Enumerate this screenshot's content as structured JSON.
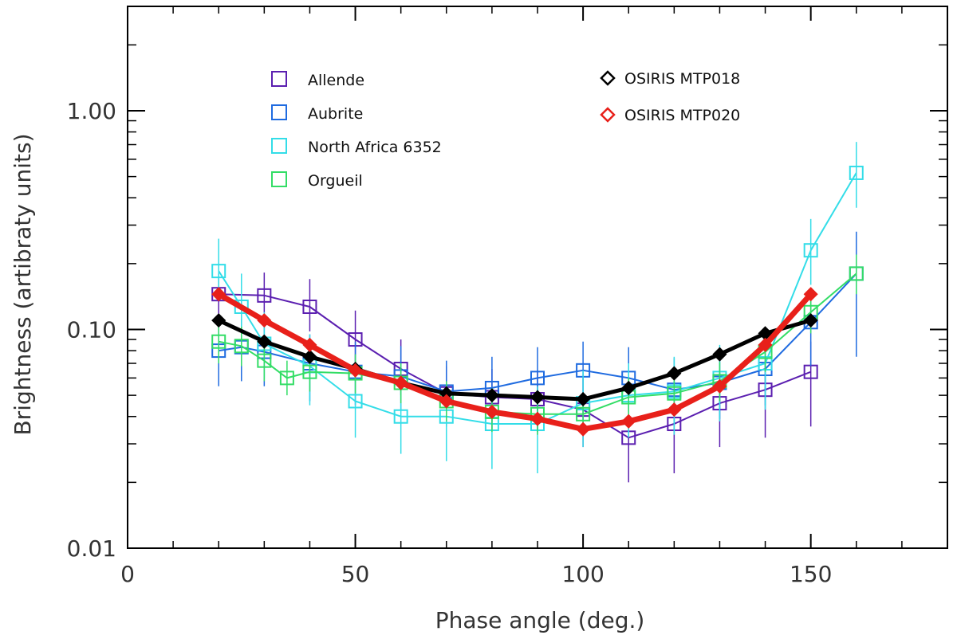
{
  "chart_data": {
    "type": "line",
    "xlabel": "Phase angle (deg.)",
    "ylabel": "Brightness (artibraty units)",
    "xlim": [
      0,
      180
    ],
    "ylim": [
      0.01,
      3.0
    ],
    "yscale": "log",
    "x_ticks": [
      0,
      50,
      100,
      150
    ],
    "x_tick_labels": [
      "0",
      "50",
      "100",
      "150"
    ],
    "y_ticks": [
      0.01,
      0.1,
      1.0
    ],
    "y_tick_labels": [
      "0.01",
      "0.10",
      "1.00"
    ],
    "grid": false,
    "legend_placement": "top",
    "series": [
      {
        "name": "Allende",
        "color": "#5b1fb0",
        "marker": "square",
        "line_width": 2,
        "x": [
          20,
          30,
          40,
          50,
          60,
          70,
          80,
          90,
          100,
          110,
          120,
          130,
          140,
          150
        ],
        "y": [
          0.145,
          0.143,
          0.127,
          0.09,
          0.066,
          0.051,
          0.049,
          0.048,
          0.043,
          0.032,
          0.037,
          0.046,
          0.053,
          0.064
        ],
        "err_low": [
          0.118,
          0.113,
          0.098,
          0.069,
          0.05,
          0.036,
          0.035,
          0.034,
          0.029,
          0.02,
          0.022,
          0.029,
          0.032,
          0.036
        ],
        "err_high": [
          0.18,
          0.182,
          0.17,
          0.122,
          0.09,
          0.068,
          0.066,
          0.065,
          0.06,
          0.046,
          0.05,
          0.063,
          0.072,
          0.088
        ]
      },
      {
        "name": "Aubrite",
        "color": "#1f6be0",
        "marker": "square",
        "line_width": 2,
        "x": [
          20,
          25,
          30,
          40,
          50,
          60,
          70,
          80,
          90,
          100,
          110,
          120,
          130,
          140,
          150,
          160
        ],
        "y": [
          0.08,
          0.083,
          0.079,
          0.07,
          0.064,
          0.061,
          0.052,
          0.054,
          0.06,
          0.065,
          0.06,
          0.053,
          0.057,
          0.066,
          0.108,
          0.18
        ],
        "err_low": [
          0.055,
          0.058,
          0.055,
          0.047,
          0.045,
          0.043,
          0.036,
          0.038,
          0.042,
          0.046,
          0.042,
          0.036,
          0.039,
          0.045,
          0.068,
          0.075
        ],
        "err_high": [
          0.11,
          0.112,
          0.109,
          0.095,
          0.088,
          0.084,
          0.072,
          0.075,
          0.083,
          0.088,
          0.083,
          0.074,
          0.079,
          0.092,
          0.15,
          0.28
        ]
      },
      {
        "name": "North Africa 6352",
        "color": "#33dde8",
        "marker": "square",
        "line_width": 2,
        "x": [
          20,
          25,
          30,
          40,
          50,
          60,
          70,
          80,
          90,
          100,
          110,
          120,
          130,
          140,
          150,
          160
        ],
        "y": [
          0.185,
          0.127,
          0.086,
          0.068,
          0.047,
          0.04,
          0.04,
          0.037,
          0.037,
          0.046,
          0.05,
          0.052,
          0.06,
          0.07,
          0.23,
          0.52
        ],
        "err_low": [
          0.135,
          0.092,
          0.06,
          0.045,
          0.032,
          0.027,
          0.025,
          0.023,
          0.022,
          0.029,
          0.032,
          0.033,
          0.038,
          0.043,
          0.16,
          0.36
        ],
        "err_high": [
          0.26,
          0.18,
          0.12,
          0.095,
          0.066,
          0.056,
          0.057,
          0.054,
          0.055,
          0.065,
          0.07,
          0.075,
          0.085,
          0.1,
          0.32,
          0.72
        ]
      },
      {
        "name": "Orgueil",
        "color": "#33dd66",
        "marker": "square",
        "line_width": 2,
        "x": [
          20,
          25,
          30,
          35,
          40,
          50,
          60,
          70,
          80,
          90,
          100,
          110,
          120,
          130,
          140,
          150,
          160
        ],
        "y": [
          0.088,
          0.084,
          0.072,
          0.06,
          0.064,
          0.063,
          0.057,
          0.047,
          0.042,
          0.041,
          0.041,
          0.049,
          0.051,
          0.058,
          0.079,
          0.12,
          0.18
        ],
        "err_low": [
          0.07,
          0.068,
          0.058,
          0.05,
          0.052,
          0.051,
          0.046,
          0.038,
          0.034,
          0.033,
          0.033,
          0.039,
          0.041,
          0.047,
          0.064,
          0.096,
          0.145
        ],
        "err_high": [
          0.108,
          0.103,
          0.088,
          0.072,
          0.078,
          0.077,
          0.07,
          0.058,
          0.052,
          0.051,
          0.051,
          0.06,
          0.063,
          0.071,
          0.096,
          0.148,
          0.22
        ]
      },
      {
        "name": "OSIRIS MTP018",
        "color": "#000000",
        "marker": "diamond",
        "line_width": 5,
        "x": [
          20,
          30,
          40,
          50,
          60,
          70,
          80,
          90,
          100,
          110,
          120,
          130,
          140,
          150
        ],
        "y": [
          0.11,
          0.088,
          0.075,
          0.066,
          0.057,
          0.051,
          0.05,
          0.049,
          0.048,
          0.054,
          0.063,
          0.077,
          0.096,
          0.11
        ]
      },
      {
        "name": "OSIRIS MTP020",
        "color": "#e8201a",
        "marker": "diamond",
        "line_width": 7,
        "x": [
          20,
          30,
          40,
          50,
          60,
          70,
          80,
          90,
          100,
          110,
          120,
          130,
          140,
          150
        ],
        "y": [
          0.145,
          0.11,
          0.085,
          0.065,
          0.057,
          0.047,
          0.042,
          0.039,
          0.035,
          0.038,
          0.043,
          0.055,
          0.085,
          0.145
        ]
      }
    ]
  },
  "legend": {
    "left": [
      {
        "label": "Allende",
        "color": "#5b1fb0",
        "marker": "square"
      },
      {
        "label": "Aubrite",
        "color": "#1f6be0",
        "marker": "square"
      },
      {
        "label": "North Africa 6352",
        "color": "#33dde8",
        "marker": "square"
      },
      {
        "label": "Orgueil",
        "color": "#33dd66",
        "marker": "square"
      }
    ],
    "right": [
      {
        "label": "OSIRIS MTP018",
        "color": "#000000",
        "marker": "diamond"
      },
      {
        "label": "OSIRIS MTP020",
        "color": "#e8201a",
        "marker": "diamond"
      }
    ]
  }
}
